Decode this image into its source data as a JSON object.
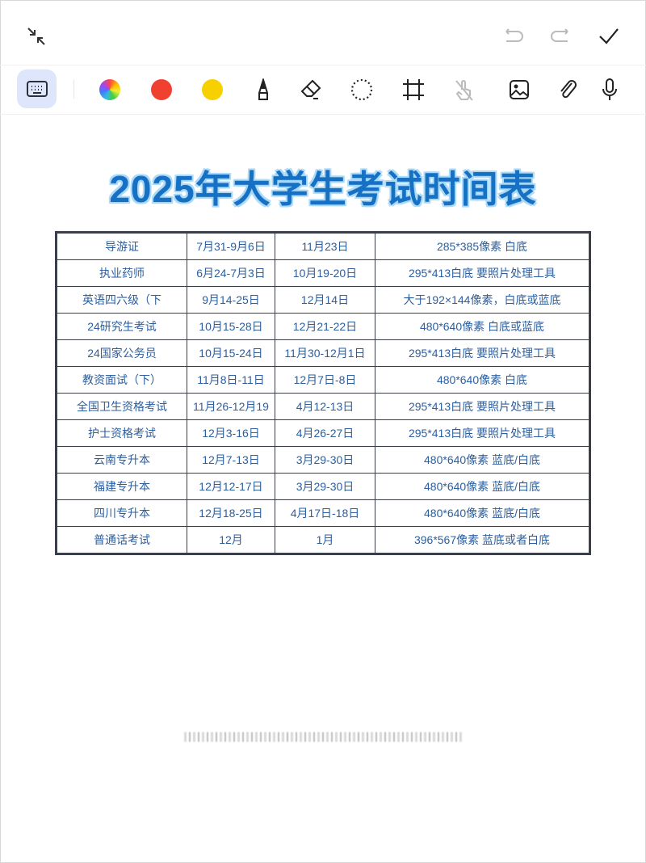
{
  "topbar": {
    "icons": [
      "collapse-icon",
      "undo-icon",
      "redo-icon",
      "check-icon"
    ]
  },
  "toolbar": {
    "icons": [
      "keyboard-icon",
      "color-wheel-icon",
      "red-color-icon",
      "yellow-color-icon",
      "pen-icon",
      "eraser-icon",
      "lasso-icon",
      "crop-icon",
      "touch-disabled-icon",
      "image-icon",
      "attachment-icon",
      "microphone-icon"
    ],
    "colors": {
      "red": "#f04030",
      "yellow": "#f7d000",
      "active_bg": "#dde6fb"
    }
  },
  "document": {
    "title": "2025年大学生考试时间表",
    "rows": [
      [
        "导游证",
        "7月31-9月6日",
        "11月23日",
        "285*385像素 白底"
      ],
      [
        "执业药师",
        "6月24-7月3日",
        "10月19-20日",
        "295*413白底 要照片处理工具"
      ],
      [
        "英语四六级（下",
        "9月14-25日",
        "12月14日",
        "大于192×144像素，白底或蓝底"
      ],
      [
        "24研究生考试",
        "10月15-28日",
        "12月21-22日",
        "480*640像素 白底或蓝底"
      ],
      [
        "24国家公务员",
        "10月15-24日",
        "11月30-12月1日",
        "295*413白底 要照片处理工具"
      ],
      [
        "教资面试（下）",
        "11月8日-11日",
        "12月7日-8日",
        "480*640像素 白底"
      ],
      [
        "全国卫生资格考试",
        "11月26-12月19",
        "4月12-13日",
        "295*413白底 要照片处理工具"
      ],
      [
        "护士资格考试",
        "12月3-16日",
        "4月26-27日",
        "295*413白底 要照片处理工具"
      ],
      [
        "云南专升本",
        "12月7-13日",
        "3月29-30日",
        "480*640像素 蓝底/白底"
      ],
      [
        "福建专升本",
        "12月12-17日",
        "3月29-30日",
        "480*640像素 蓝底/白底"
      ],
      [
        "四川专升本",
        "12月18-25日",
        "4月17日-18日",
        "480*640像素 蓝底/白底"
      ],
      [
        "普通话考试",
        "12月",
        "1月",
        "396*567像素 蓝底或者白底"
      ]
    ]
  }
}
